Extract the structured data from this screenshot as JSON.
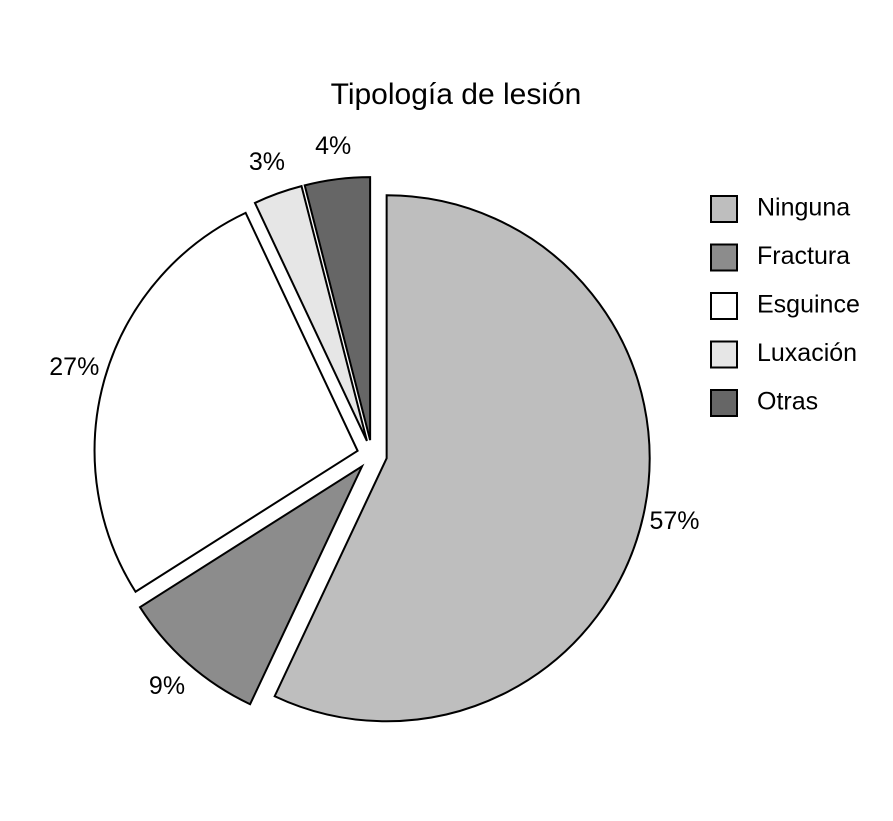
{
  "chart_data": {
    "type": "pie",
    "title": "Tipología de lesión",
    "categories": [
      "Ninguna",
      "Fractura",
      "Esguince",
      "Luxación",
      "Otras"
    ],
    "values": [
      57,
      9,
      27,
      3,
      4
    ],
    "value_labels": [
      "57%",
      "9%",
      "27%",
      "3%",
      "4%"
    ],
    "colors": [
      "#bebebe",
      "#8c8c8c",
      "#ffffff",
      "#e6e6e6",
      "#666666"
    ],
    "legend": "right"
  }
}
